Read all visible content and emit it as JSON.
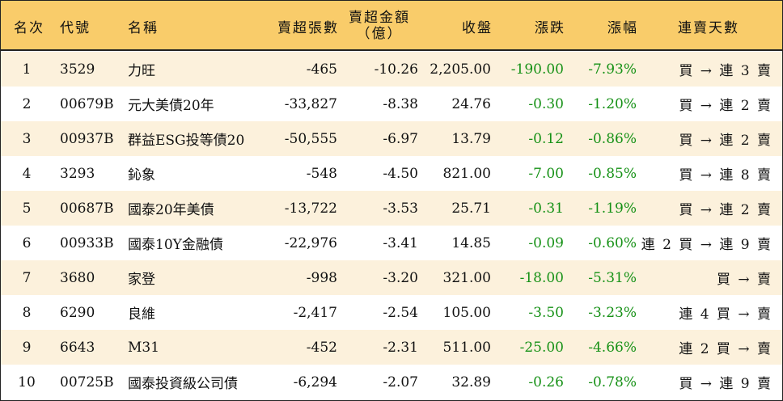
{
  "header": {
    "rank": "名次",
    "code": "代號",
    "name": "名稱",
    "volume": "賣超張數",
    "amount_line1": "賣超金額",
    "amount_line2": "（億）",
    "close": "收盤",
    "change": "漲跌",
    "change_pct": "漲幅",
    "streak": "連賣天數"
  },
  "colors": {
    "header_bg": "#f9cc6a",
    "odd_row_bg": "#fcf1dc",
    "even_row_bg": "#ffffff",
    "negative_change": "#169116",
    "border": "#222222"
  },
  "rows": [
    {
      "rank": "1",
      "code": "3529",
      "name": "力旺",
      "volume": "-465",
      "amount": "-10.26",
      "close": "2,205.00",
      "change": "-190.00",
      "change_pct": "-7.93%",
      "streak": "買 → 連 3 賣"
    },
    {
      "rank": "2",
      "code": "00679B",
      "name": "元大美債20年",
      "volume": "-33,827",
      "amount": "-8.38",
      "close": "24.76",
      "change": "-0.30",
      "change_pct": "-1.20%",
      "streak": "買 → 連 2 賣"
    },
    {
      "rank": "3",
      "code": "00937B",
      "name": "群益ESG投等債20",
      "volume": "-50,555",
      "amount": "-6.97",
      "close": "13.79",
      "change": "-0.12",
      "change_pct": "-0.86%",
      "streak": "買 → 連 2 賣"
    },
    {
      "rank": "4",
      "code": "3293",
      "name": "鈊象",
      "volume": "-548",
      "amount": "-4.50",
      "close": "821.00",
      "change": "-7.00",
      "change_pct": "-0.85%",
      "streak": "買 → 連 8 賣"
    },
    {
      "rank": "5",
      "code": "00687B",
      "name": "國泰20年美債",
      "volume": "-13,722",
      "amount": "-3.53",
      "close": "25.71",
      "change": "-0.31",
      "change_pct": "-1.19%",
      "streak": "買 → 連 2 賣"
    },
    {
      "rank": "6",
      "code": "00933B",
      "name": "國泰10Y金融債",
      "volume": "-22,976",
      "amount": "-3.41",
      "close": "14.85",
      "change": "-0.09",
      "change_pct": "-0.60%",
      "streak": "連 2 買 → 連 9 賣"
    },
    {
      "rank": "7",
      "code": "3680",
      "name": "家登",
      "volume": "-998",
      "amount": "-3.20",
      "close": "321.00",
      "change": "-18.00",
      "change_pct": "-5.31%",
      "streak": "買 → 賣"
    },
    {
      "rank": "8",
      "code": "6290",
      "name": "良維",
      "volume": "-2,417",
      "amount": "-2.54",
      "close": "105.00",
      "change": "-3.50",
      "change_pct": "-3.23%",
      "streak": "連 4 買 → 賣"
    },
    {
      "rank": "9",
      "code": "6643",
      "name": "M31",
      "volume": "-452",
      "amount": "-2.31",
      "close": "511.00",
      "change": "-25.00",
      "change_pct": "-4.66%",
      "streak": "連 2 買 → 賣"
    },
    {
      "rank": "10",
      "code": "00725B",
      "name": "國泰投資級公司債",
      "volume": "-6,294",
      "amount": "-2.07",
      "close": "32.89",
      "change": "-0.26",
      "change_pct": "-0.78%",
      "streak": "買 → 連 9 賣"
    }
  ]
}
